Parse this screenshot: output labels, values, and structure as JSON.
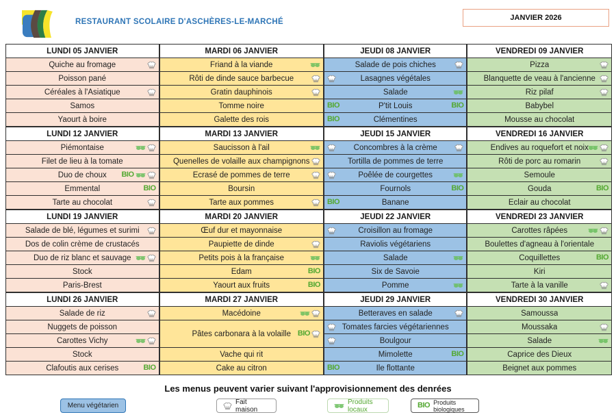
{
  "header": {
    "title": "RESTAURANT SCOLAIRE D'ASCHÈRES-LE-MARCHÉ",
    "month": "JANVIER 2026"
  },
  "labels": {
    "bio": "BIO"
  },
  "colors": {
    "title_blue": "#2e75b6",
    "month_border": "#e9a183",
    "grid_line": "#2f2f2f",
    "monday_bg": "#fbe2d5",
    "tuesday_bg": "#ffe599",
    "thursday_bg": "#9cc2e5",
    "friday_bg": "#c5e0b3",
    "bio_green": "#54a832",
    "local_green": "#6abf5e",
    "hat_gray": "#8c8c8c",
    "legend_veg_bg": "#9cc2e5",
    "legend_veg_border": "#2e75b6"
  },
  "menu": {
    "weeks": [
      {
        "days": [
          {
            "header": "LUNDI 05 JANVIER",
            "color": "monday_bg",
            "items": [
              {
                "label": "Quiche au fromage",
                "right": [
                  "fait-maison"
                ]
              },
              {
                "label": "Poisson pané"
              },
              {
                "label": "Céréales à l'Asiatique",
                "right": [
                  "fait-maison"
                ]
              },
              {
                "label": "Samos"
              },
              {
                "label": "Yaourt à boire"
              }
            ]
          },
          {
            "header": "MARDI 06 JANVIER",
            "color": "tuesday_bg",
            "items": [
              {
                "label": "Friand à la viande",
                "right": [
                  "local"
                ]
              },
              {
                "label": "Rôti de dinde sauce barbecue",
                "right": [
                  "fait-maison"
                ]
              },
              {
                "label": "Gratin dauphinois",
                "right": [
                  "fait-maison"
                ]
              },
              {
                "label": "Tomme noire"
              },
              {
                "label": "Galette des rois"
              }
            ]
          },
          {
            "header": "JEUDI 08 JANVIER",
            "color": "thursday_bg",
            "items": [
              {
                "label": "Salade de pois chiches",
                "right": [
                  "fait-maison"
                ]
              },
              {
                "label": "Lasagnes végétales",
                "left": [
                  "fait-maison"
                ]
              },
              {
                "label": "Salade",
                "right": [
                  "local"
                ]
              },
              {
                "label": "P'tit Louis",
                "left": [
                  "bio"
                ],
                "right": [
                  "bio"
                ]
              },
              {
                "label": "Clémentines",
                "left": [
                  "bio"
                ]
              }
            ]
          },
          {
            "header": "VENDREDI 09 JANVIER",
            "color": "friday_bg",
            "items": [
              {
                "label": "Pizza",
                "right": [
                  "fait-maison"
                ]
              },
              {
                "label": "Blanquette de veau à l'ancienne",
                "right": [
                  "fait-maison"
                ]
              },
              {
                "label": "Riz pilaf",
                "right": [
                  "fait-maison"
                ]
              },
              {
                "label": "Babybel"
              },
              {
                "label": "Mousse au chocolat"
              }
            ]
          }
        ]
      },
      {
        "days": [
          {
            "header": "LUNDI 12 JANVIER",
            "color": "monday_bg",
            "items": [
              {
                "label": "Piémontaise",
                "right": [
                  "local",
                  "fait-maison"
                ]
              },
              {
                "label": "Filet de lieu à la tomate"
              },
              {
                "label": "Duo de choux",
                "right": [
                  "bio",
                  "local",
                  "fait-maison"
                ]
              },
              {
                "label": "Emmental",
                "right": [
                  "bio"
                ]
              },
              {
                "label": "Tarte au chocolat",
                "right": [
                  "fait-maison"
                ]
              }
            ]
          },
          {
            "header": "MARDI 13 JANVIER",
            "color": "tuesday_bg",
            "items": [
              {
                "label": "Saucisson à l'ail",
                "right": [
                  "local"
                ]
              },
              {
                "label": "Quenelles de volaille aux champignons",
                "right": [
                  "fait-maison"
                ]
              },
              {
                "label": "Ecrasé de pommes de terre",
                "right": [
                  "fait-maison"
                ]
              },
              {
                "label": "Boursin"
              },
              {
                "label": "Tarte aux pommes",
                "right": [
                  "fait-maison"
                ]
              }
            ]
          },
          {
            "header": "JEUDI 15 JANVIER",
            "color": "thursday_bg",
            "items": [
              {
                "label": "Concombres à la crème",
                "left": [
                  "fait-maison"
                ],
                "right": [
                  "fait-maison"
                ]
              },
              {
                "label": "Tortilla de pommes de terre"
              },
              {
                "label": "Poêlée de courgettes",
                "left": [
                  "fait-maison"
                ],
                "right": [
                  "local"
                ]
              },
              {
                "label": "Fournols",
                "right": [
                  "bio"
                ]
              },
              {
                "label": "Banane",
                "left": [
                  "bio"
                ]
              }
            ]
          },
          {
            "header": "VENDREDI 16 JANVIER",
            "color": "friday_bg",
            "items": [
              {
                "label": "Endives au roquefort et noix",
                "right": [
                  "local",
                  "fait-maison"
                ]
              },
              {
                "label": "Rôti de porc au romarin",
                "right": [
                  "fait-maison"
                ]
              },
              {
                "label": "Semoule"
              },
              {
                "label": "Gouda",
                "right": [
                  "bio"
                ]
              },
              {
                "label": "Eclair au chocolat"
              }
            ]
          }
        ]
      },
      {
        "days": [
          {
            "header": "LUNDI 19 JANVIER",
            "color": "monday_bg",
            "items": [
              {
                "label": "Salade de blé, légumes et surimi",
                "right": [
                  "fait-maison"
                ]
              },
              {
                "label": "Dos de colin crème de crustacés"
              },
              {
                "label": "Duo de riz blanc et sauvage",
                "right": [
                  "local",
                  "fait-maison"
                ]
              },
              {
                "label": "Stock"
              },
              {
                "label": "Paris-Brest"
              }
            ]
          },
          {
            "header": "MARDI 20 JANVIER",
            "color": "tuesday_bg",
            "items": [
              {
                "label": "Œuf dur et mayonnaise"
              },
              {
                "label": "Paupiette de dinde",
                "right": [
                  "fait-maison"
                ]
              },
              {
                "label": "Petits pois à la française",
                "right": [
                  "local"
                ]
              },
              {
                "label": "Edam",
                "right": [
                  "bio"
                ]
              },
              {
                "label": "Yaourt aux fruits",
                "right": [
                  "bio"
                ]
              }
            ]
          },
          {
            "header": "JEUDI 22 JANVIER",
            "color": "thursday_bg",
            "items": [
              {
                "label": "Croisillon au fromage",
                "left": [
                  "fait-maison"
                ]
              },
              {
                "label": "Raviolis végétariens"
              },
              {
                "label": "Salade",
                "right": [
                  "local"
                ]
              },
              {
                "label": "Six de Savoie"
              },
              {
                "label": "Pomme",
                "right": [
                  "local"
                ]
              }
            ]
          },
          {
            "header": "VENDREDI 23 JANVIER",
            "color": "friday_bg",
            "items": [
              {
                "label": "Carottes râpées",
                "right": [
                  "local",
                  "fait-maison"
                ]
              },
              {
                "label": "Boulettes d'agneau à l'orientale"
              },
              {
                "label": "Coquillettes",
                "right": [
                  "bio"
                ]
              },
              {
                "label": "Kiri"
              },
              {
                "label": "Tarte à la vanille",
                "right": [
                  "fait-maison"
                ]
              }
            ]
          }
        ]
      },
      {
        "days": [
          {
            "header": "LUNDI 26 JANVIER",
            "color": "monday_bg",
            "items": [
              {
                "label": "Salade de riz",
                "right": [
                  "fait-maison"
                ]
              },
              {
                "label": "Nuggets de poisson"
              },
              {
                "label": "Carottes Vichy",
                "right": [
                  "local",
                  "fait-maison"
                ]
              },
              {
                "label": "Stock"
              },
              {
                "label": "Clafoutis aux cerises",
                "right": [
                  "bio"
                ]
              }
            ]
          },
          {
            "header": "MARDI 27 JANVIER",
            "color": "tuesday_bg",
            "items": [
              {
                "label": "Macédoine",
                "right": [
                  "local",
                  "fait-maison"
                ]
              },
              {
                "label": "Pâtes carbonara à la volaille",
                "right": [
                  "bio",
                  "fait-maison"
                ],
                "span": 2
              },
              {
                "label": "Vache qui rit"
              },
              {
                "label": "Cake au citron"
              }
            ]
          },
          {
            "header": "JEUDI 29 JANVIER",
            "color": "thursday_bg",
            "items": [
              {
                "label": "Betteraves en salade",
                "right": [
                  "fait-maison"
                ]
              },
              {
                "label": "Tomates farcies végétariennes",
                "left": [
                  "fait-maison"
                ]
              },
              {
                "label": "Boulgour",
                "left": [
                  "fait-maison"
                ]
              },
              {
                "label": "Mimolette",
                "right": [
                  "bio"
                ]
              },
              {
                "label": "Île flottante",
                "left": [
                  "bio"
                ]
              }
            ]
          },
          {
            "header": "VENDREDI 30 JANVIER",
            "color": "friday_bg",
            "items": [
              {
                "label": "Samoussa"
              },
              {
                "label": "Moussaka",
                "right": [
                  "fait-maison"
                ]
              },
              {
                "label": "Salade",
                "right": [
                  "local"
                ]
              },
              {
                "label": "Caprice des Dieux"
              },
              {
                "label": "Beignet aux pommes"
              }
            ]
          }
        ]
      }
    ]
  },
  "footer": {
    "note": "Les menus peuvent varier suivant l'approvisionnement des denrées",
    "legend_vegetarian": "Menu végétarien",
    "legend_fait_maison": "Fait maison",
    "legend_produits_locaux": "Produits locaux",
    "legend_bio": "Produits biologiques"
  }
}
